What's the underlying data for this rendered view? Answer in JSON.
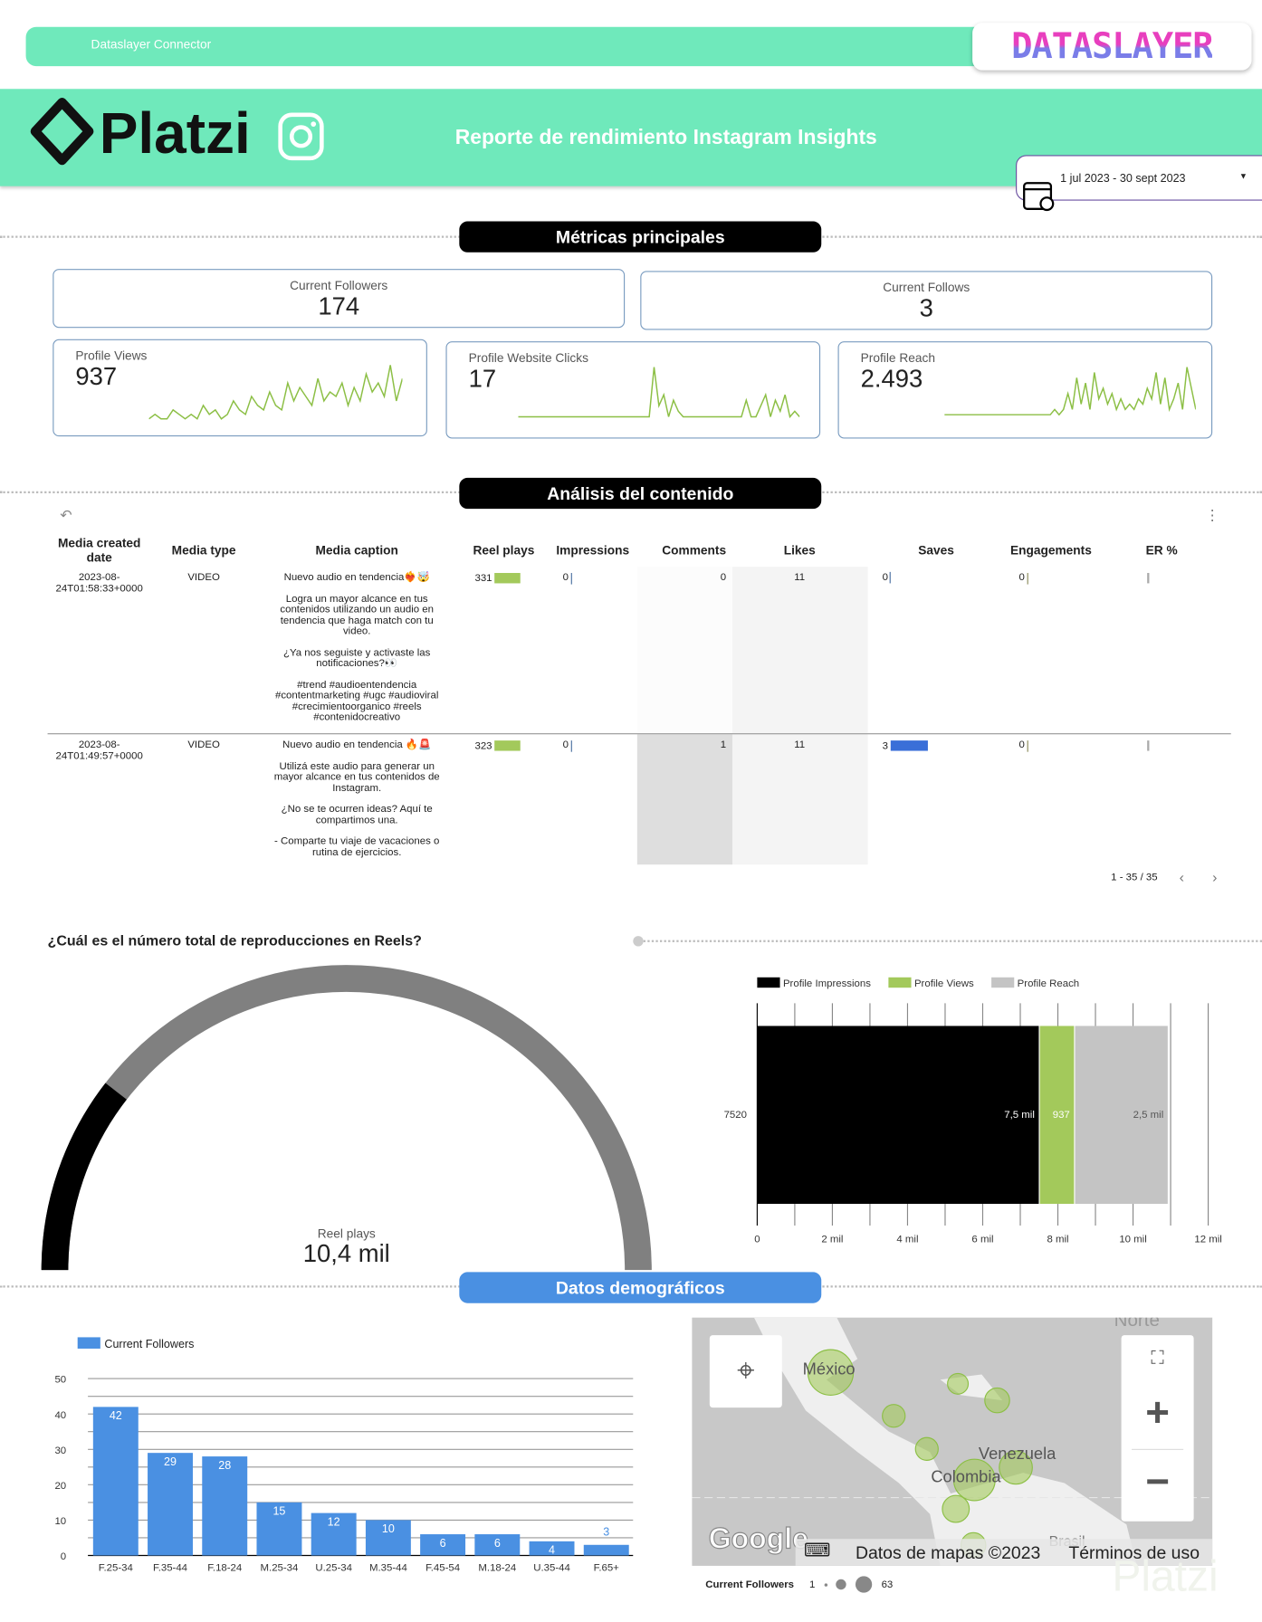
{
  "topbar": {
    "label": "Dataslayer Connector",
    "brand_logo": "DATASLAYER"
  },
  "header": {
    "logo": "Platzi",
    "title": "Reporte de rendimiento Instagram Insights",
    "date_range": "1 jul 2023 - 30 sept 2023"
  },
  "sections": {
    "metrics": "Métricas principales",
    "content": "Análisis del contenido",
    "demo": "Datos demográficos"
  },
  "kpis": [
    {
      "label": "Current Followers",
      "value": "174"
    },
    {
      "label": "Current Follows",
      "value": "3"
    },
    {
      "label": "Profile Views",
      "value": "937",
      "spark": [
        0,
        1,
        0,
        0,
        2,
        1,
        0,
        1,
        0,
        3,
        1,
        2,
        0,
        1,
        4,
        2,
        1,
        5,
        3,
        2,
        6,
        3,
        2,
        8,
        4,
        7,
        5,
        3,
        9,
        4,
        6,
        5,
        8,
        3,
        7,
        4,
        10,
        6,
        8,
        5,
        12,
        4,
        9
      ]
    },
    {
      "label": "Profile Website Clicks",
      "value": "17",
      "spark": [
        0,
        0,
        0,
        0,
        0,
        0,
        0,
        0,
        0,
        0,
        0,
        0,
        0,
        0,
        0,
        0,
        0,
        0,
        0,
        0,
        0,
        0,
        0,
        0,
        0,
        0,
        0,
        0,
        9,
        2,
        4,
        0,
        3,
        1,
        0,
        0,
        0,
        0,
        0,
        0,
        0,
        0,
        0,
        0,
        0,
        0,
        0,
        3,
        0,
        0,
        2,
        4,
        0,
        3,
        1,
        4,
        0,
        1,
        0
      ]
    },
    {
      "label": "Profile Reach",
      "value": "2.493",
      "spark": [
        0,
        0,
        0,
        0,
        0,
        0,
        0,
        0,
        0,
        0,
        0,
        0,
        0,
        0,
        0,
        0,
        0,
        0,
        0,
        0,
        0,
        0,
        0,
        0,
        0,
        1,
        0,
        1,
        4,
        1,
        7,
        2,
        6,
        1,
        8,
        3,
        5,
        2,
        4,
        1,
        3,
        1,
        2,
        1,
        3,
        2,
        5,
        3,
        8,
        2,
        7,
        1,
        3,
        6,
        1,
        9,
        5,
        1
      ]
    }
  ],
  "table": {
    "columns": [
      "Media created date",
      "Media type",
      "Media caption",
      "Reel plays",
      "Impressions",
      "Comments",
      "Likes",
      "Saves",
      "Engagements",
      "ER %"
    ],
    "rows": [
      {
        "date": "2023-08-24T01:58:33+0000",
        "type": "VIDEO",
        "caption": [
          "Nuevo audio en tendencia❤️‍🔥🤯",
          "Logra un mayor alcance en tus contenidos utilizando un audio en tendencia que haga match con tu video.",
          "¿Ya nos seguiste y activaste las notificaciones?👀",
          "#trend #audioentendencia #contentmarketing #ugc #audioviral #crecimientoorganico #reels #contenidocreativo"
        ],
        "reel_plays": "331",
        "impressions": "0",
        "comments": "0",
        "likes": "11",
        "saves": "0",
        "engagements": "0",
        "er": ""
      },
      {
        "date": "2023-08-24T01:49:57+0000",
        "type": "VIDEO",
        "caption": [
          "Nuevo audio en tendencia 🔥🚨",
          "Utilizá este audio para generar un mayor alcance en tus contenidos de Instagram.",
          "¿No se te ocurren ideas? Aquí te compartimos una.",
          "- Comparte tu viaje de vacaciones o rutina de ejercicios."
        ],
        "reel_plays": "323",
        "impressions": "0",
        "comments": "1",
        "likes": "11",
        "saves": "3",
        "engagements": "0",
        "er": ""
      }
    ],
    "pagination": "1 - 35 / 35"
  },
  "gauge": {
    "question": "¿Cuál es el número total de reproducciones en Reels?",
    "label": "Reel plays",
    "value": "10,4 mil",
    "fill_fraction": 0.21
  },
  "chart_data": [
    {
      "type": "bar",
      "orientation": "horizontal",
      "stacked": true,
      "categories": [
        "7520"
      ],
      "series": [
        {
          "name": "Profile Impressions",
          "values": [
            7520
          ],
          "label": "7,5 mil",
          "color": "#000000"
        },
        {
          "name": "Profile Views",
          "values": [
            937
          ],
          "label": "937",
          "color": "#a3c95b"
        },
        {
          "name": "Profile Reach",
          "values": [
            2493
          ],
          "label": "2,5 mil",
          "color": "#c4c4c4"
        }
      ],
      "xlim": [
        0,
        12000
      ],
      "xticks": [
        "0",
        "2 mil",
        "4 mil",
        "6 mil",
        "8 mil",
        "10 mil",
        "12 mil"
      ],
      "legend": "top-left",
      "grid": true
    },
    {
      "type": "bar",
      "categories": [
        "F.25-34",
        "F.35-44",
        "F.18-24",
        "M.25-34",
        "U.25-34",
        "M.35-44",
        "F.45-54",
        "M.18-24",
        "U.35-44",
        "F.65+"
      ],
      "series": [
        {
          "name": "Current Followers",
          "values": [
            42,
            29,
            28,
            15,
            12,
            10,
            6,
            6,
            4,
            3
          ],
          "color": "#4a90e2"
        }
      ],
      "ylim": [
        0,
        50
      ],
      "yticks": [
        "0",
        "10",
        "20",
        "30",
        "40",
        "50"
      ],
      "legend": "top-left",
      "grid": true
    }
  ],
  "map": {
    "labels": [
      "México",
      "Venezuela",
      "Colombia",
      "Brasil",
      "Norte"
    ],
    "attribution": "Datos de mapas ©2023",
    "terms": "Términos de uso",
    "google": "Google",
    "legend_title": "Current Followers",
    "legend_min": "1",
    "legend_max": "63"
  },
  "watermark": "Platzi"
}
